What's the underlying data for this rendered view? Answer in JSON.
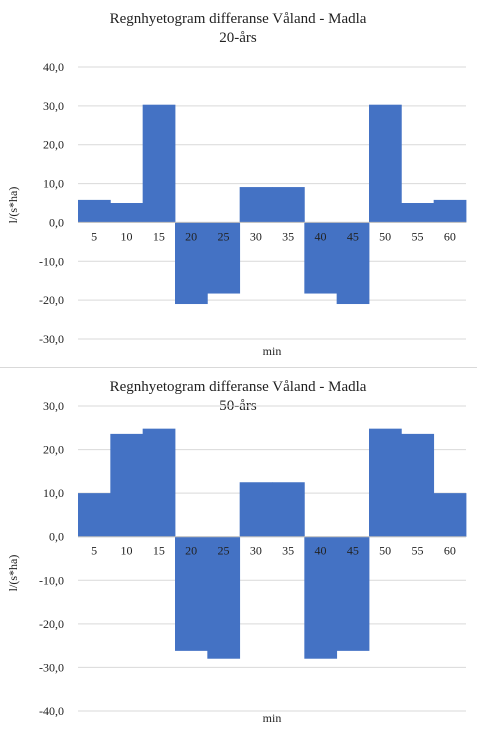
{
  "chart_data": [
    {
      "type": "bar",
      "title": "Regnhyetogram differanse Våland - Madla",
      "subtitle": "20-års",
      "xlabel": "min",
      "ylabel": "l/(s*ha)",
      "categories": [
        "5",
        "10",
        "15",
        "20",
        "25",
        "30",
        "35",
        "40",
        "45",
        "50",
        "55",
        "60"
      ],
      "values": [
        5.8,
        5.0,
        30.3,
        -21.0,
        -18.3,
        9.1,
        9.1,
        -18.3,
        -21.0,
        30.3,
        5.0,
        5.8
      ],
      "ylim": [
        -30,
        40
      ],
      "yticks": [
        "40,0",
        "30,0",
        "20,0",
        "10,0",
        "0,0",
        "-10,0",
        "-20,0",
        "-30,0"
      ],
      "grid": true,
      "bar_gap": 0,
      "color": "#4472C4"
    },
    {
      "type": "bar",
      "title": "Regnhyetogram differanse Våland - Madla",
      "subtitle": "50-års",
      "xlabel": "min",
      "ylabel": "l/(s*ha)",
      "categories": [
        "5",
        "10",
        "15",
        "20",
        "25",
        "30",
        "35",
        "40",
        "45",
        "50",
        "55",
        "60"
      ],
      "values": [
        10.0,
        23.6,
        24.8,
        -26.2,
        -28.0,
        12.5,
        12.5,
        -28.0,
        -26.2,
        24.8,
        23.6,
        10.0
      ],
      "ylim": [
        -40,
        30
      ],
      "yticks": [
        "30,0",
        "20,0",
        "10,0",
        "0,0",
        "-10,0",
        "-20,0",
        "-30,0",
        "-40,0"
      ],
      "grid": true,
      "bar_gap": 0,
      "color": "#4472C4"
    }
  ]
}
